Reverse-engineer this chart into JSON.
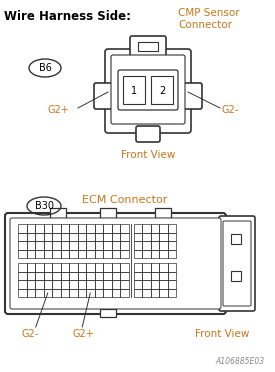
{
  "title_left": "Wire Harness Side:",
  "title_right": "CMP Sensor\nConnector",
  "ecm_label": "ECM Connector",
  "b6_label": "B6",
  "b30_label": "B30",
  "front_view": "Front View",
  "g2plus_top": "G2+",
  "g2minus_top": "G2-",
  "g2minus_bot": "G2-",
  "g2plus_bot": "G2+",
  "watermark": "A106885E03",
  "bg_color": "#ffffff",
  "text_color_blue": "#c8761a",
  "text_color_bold": "#000000",
  "line_color": "#333333",
  "font_size_title": 8.5,
  "font_size_label": 7,
  "font_size_watermark": 5.5
}
